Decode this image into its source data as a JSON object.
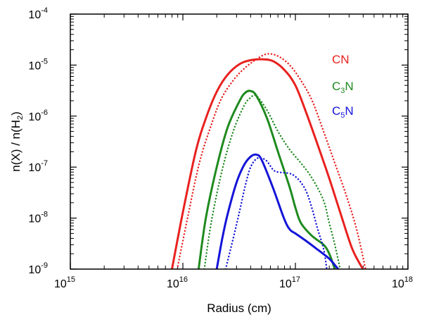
{
  "chart_data": {
    "type": "line",
    "xscale": "log",
    "yscale": "log",
    "xlabel": "Radius (cm)",
    "ylabel_parts": {
      "pre": "n(X) / n(H",
      "sub": "2",
      "post": ")"
    },
    "xlim": [
      1000000000000000.0,
      1e+18
    ],
    "ylim": [
      1e-09,
      0.0001
    ],
    "x_ticks": [
      {
        "value": 1000000000000000.0,
        "base": "10",
        "exp": "15"
      },
      {
        "value": 1e+16,
        "base": "10",
        "exp": "16"
      },
      {
        "value": 1e+17,
        "base": "10",
        "exp": "17"
      },
      {
        "value": 1e+18,
        "base": "10",
        "exp": "18"
      }
    ],
    "y_ticks": [
      {
        "value": 1e-09,
        "base": "10",
        "exp": "-9"
      },
      {
        "value": 1e-08,
        "base": "10",
        "exp": "-8"
      },
      {
        "value": 1e-07,
        "base": "10",
        "exp": "-7"
      },
      {
        "value": 1e-06,
        "base": "10",
        "exp": "-6"
      },
      {
        "value": 1e-05,
        "base": "10",
        "exp": "-5"
      },
      {
        "value": 0.0001,
        "base": "10",
        "exp": "-4"
      }
    ],
    "legend": [
      {
        "base": "CN",
        "sub": "",
        "tail": "",
        "color": "#e8211f"
      },
      {
        "base": "C",
        "sub": "3",
        "tail": "N",
        "color": "#1e8a1e"
      },
      {
        "base": "C",
        "sub": "5",
        "tail": "N",
        "color": "#1414d8"
      }
    ],
    "series": [
      {
        "name": "CN",
        "style": "solid",
        "color": "#e8211f",
        "points": [
          [
            8000000000000000.0,
            1e-09
          ],
          [
            1e+16,
            1.3e-08
          ],
          [
            1.3e+16,
            2e-07
          ],
          [
            1.6e+16,
            9e-07
          ],
          [
            2e+16,
            3e-06
          ],
          [
            2.5e+16,
            6.5e-06
          ],
          [
            3.2e+16,
            1.05e-05
          ],
          [
            4e+16,
            1.25e-05
          ],
          [
            5e+16,
            1.3e-05
          ],
          [
            6.3e+16,
            1.2e-05
          ],
          [
            8e+16,
            8e-06
          ],
          [
            1e+17,
            4e-06
          ],
          [
            1.26e+17,
            1.1e-06
          ],
          [
            1.6e+17,
            2.5e-07
          ],
          [
            2e+17,
            6e-08
          ],
          [
            2.5e+17,
            1.3e-08
          ],
          [
            3.2e+17,
            2.5e-09
          ],
          [
            3.98e+17,
            1e-09
          ]
        ]
      },
      {
        "name": "CN",
        "style": "dotted",
        "color": "#e8211f",
        "points": [
          [
            8900000000000000.0,
            1e-09
          ],
          [
            1.1e+16,
            1e-08
          ],
          [
            1.4e+16,
            1.2e-07
          ],
          [
            1.8e+16,
            7e-07
          ],
          [
            2.2e+16,
            2.2e-06
          ],
          [
            2.8e+16,
            5e-06
          ],
          [
            3.5e+16,
            8.5e-06
          ],
          [
            4.5e+16,
            1.3e-05
          ],
          [
            5.6e+16,
            1.65e-05
          ],
          [
            7e+16,
            1.5e-05
          ],
          [
            8.9e+16,
            1e-05
          ],
          [
            1.12e+17,
            5e-06
          ],
          [
            1.41e+17,
            2e-06
          ],
          [
            1.78e+17,
            5e-07
          ],
          [
            2.24e+17,
            1.2e-07
          ],
          [
            2.8e+17,
            3e-08
          ],
          [
            3.5e+17,
            6e-09
          ],
          [
            4.2e+17,
            1e-09
          ]
        ]
      },
      {
        "name": "C3N",
        "style": "solid",
        "color": "#1e8a1e",
        "points": [
          [
            1.38e+16,
            1e-09
          ],
          [
            1.6e+16,
            1e-08
          ],
          [
            2e+16,
            1e-07
          ],
          [
            2.5e+16,
            6e-07
          ],
          [
            3.2e+16,
            2e-06
          ],
          [
            3.6e+16,
            2.9e-06
          ],
          [
            4e+16,
            3.1e-06
          ],
          [
            4.5e+16,
            2.5e-06
          ],
          [
            5.6e+16,
            9e-07
          ],
          [
            7e+16,
            2e-07
          ],
          [
            8.9e+16,
            4e-08
          ],
          [
            1e+17,
            1.6e-08
          ],
          [
            1.12e+17,
            8e-09
          ],
          [
            1.4e+17,
            4.5e-09
          ],
          [
            1.78e+17,
            3e-09
          ],
          [
            2e+17,
            2e-09
          ],
          [
            2.24e+17,
            1e-09
          ]
        ]
      },
      {
        "name": "C3N",
        "style": "dotted",
        "color": "#1e8a1e",
        "points": [
          [
            1.55e+16,
            1e-09
          ],
          [
            1.8e+16,
            9e-09
          ],
          [
            2.24e+16,
            9e-08
          ],
          [
            2.8e+16,
            5e-07
          ],
          [
            3.5e+16,
            1.6e-06
          ],
          [
            4e+16,
            2.3e-06
          ],
          [
            4.5e+16,
            2.5e-06
          ],
          [
            5.6e+16,
            1.3e-06
          ],
          [
            7e+16,
            5e-07
          ],
          [
            8.9e+16,
            2.2e-07
          ],
          [
            1.12e+17,
            1.2e-07
          ],
          [
            1.41e+17,
            6e-08
          ],
          [
            1.78e+17,
            2.2e-08
          ],
          [
            2e+17,
            8e-09
          ],
          [
            2.24e+17,
            3e-09
          ],
          [
            2.5e+17,
            1e-09
          ]
        ]
      },
      {
        "name": "C5N",
        "style": "solid",
        "color": "#1414d8",
        "points": [
          [
            2e+16,
            1e-09
          ],
          [
            2.24e+16,
            4e-09
          ],
          [
            2.5e+16,
            1.2e-08
          ],
          [
            3e+16,
            5e-08
          ],
          [
            3.5e+16,
            1.1e-07
          ],
          [
            4e+16,
            1.6e-07
          ],
          [
            4.5e+16,
            1.75e-07
          ],
          [
            5e+16,
            1.4e-07
          ],
          [
            6.3e+16,
            4e-08
          ],
          [
            7.9e+16,
            1e-08
          ],
          [
            8.9e+16,
            6e-09
          ],
          [
            1e+17,
            5e-09
          ],
          [
            1.26e+17,
            3.5e-09
          ],
          [
            1.58e+17,
            2.4e-09
          ],
          [
            2e+17,
            1.6e-09
          ],
          [
            2.24e+17,
            1.2e-09
          ],
          [
            2.4e+17,
            1e-09
          ]
        ]
      },
      {
        "name": "C5N",
        "style": "dotted",
        "color": "#1414d8",
        "points": [
          [
            2.4e+16,
            1e-09
          ],
          [
            2.8e+16,
            4e-09
          ],
          [
            3.2e+16,
            1.4e-08
          ],
          [
            3.6e+16,
            4.5e-08
          ],
          [
            4e+16,
            1e-07
          ],
          [
            4.5e+16,
            1.45e-07
          ],
          [
            5e+16,
            1.5e-07
          ],
          [
            5.6e+16,
            1.3e-07
          ],
          [
            6.3e+16,
            9e-08
          ],
          [
            7e+16,
            8e-08
          ],
          [
            8.9e+16,
            7.5e-08
          ],
          [
            1e+17,
            6.5e-08
          ],
          [
            1.12e+17,
            5e-08
          ],
          [
            1.26e+17,
            3.2e-08
          ],
          [
            1.41e+17,
            1.5e-08
          ],
          [
            1.58e+17,
            6e-09
          ],
          [
            1.78e+17,
            2.5e-09
          ],
          [
            1.9e+17,
            1e-09
          ]
        ]
      }
    ]
  }
}
